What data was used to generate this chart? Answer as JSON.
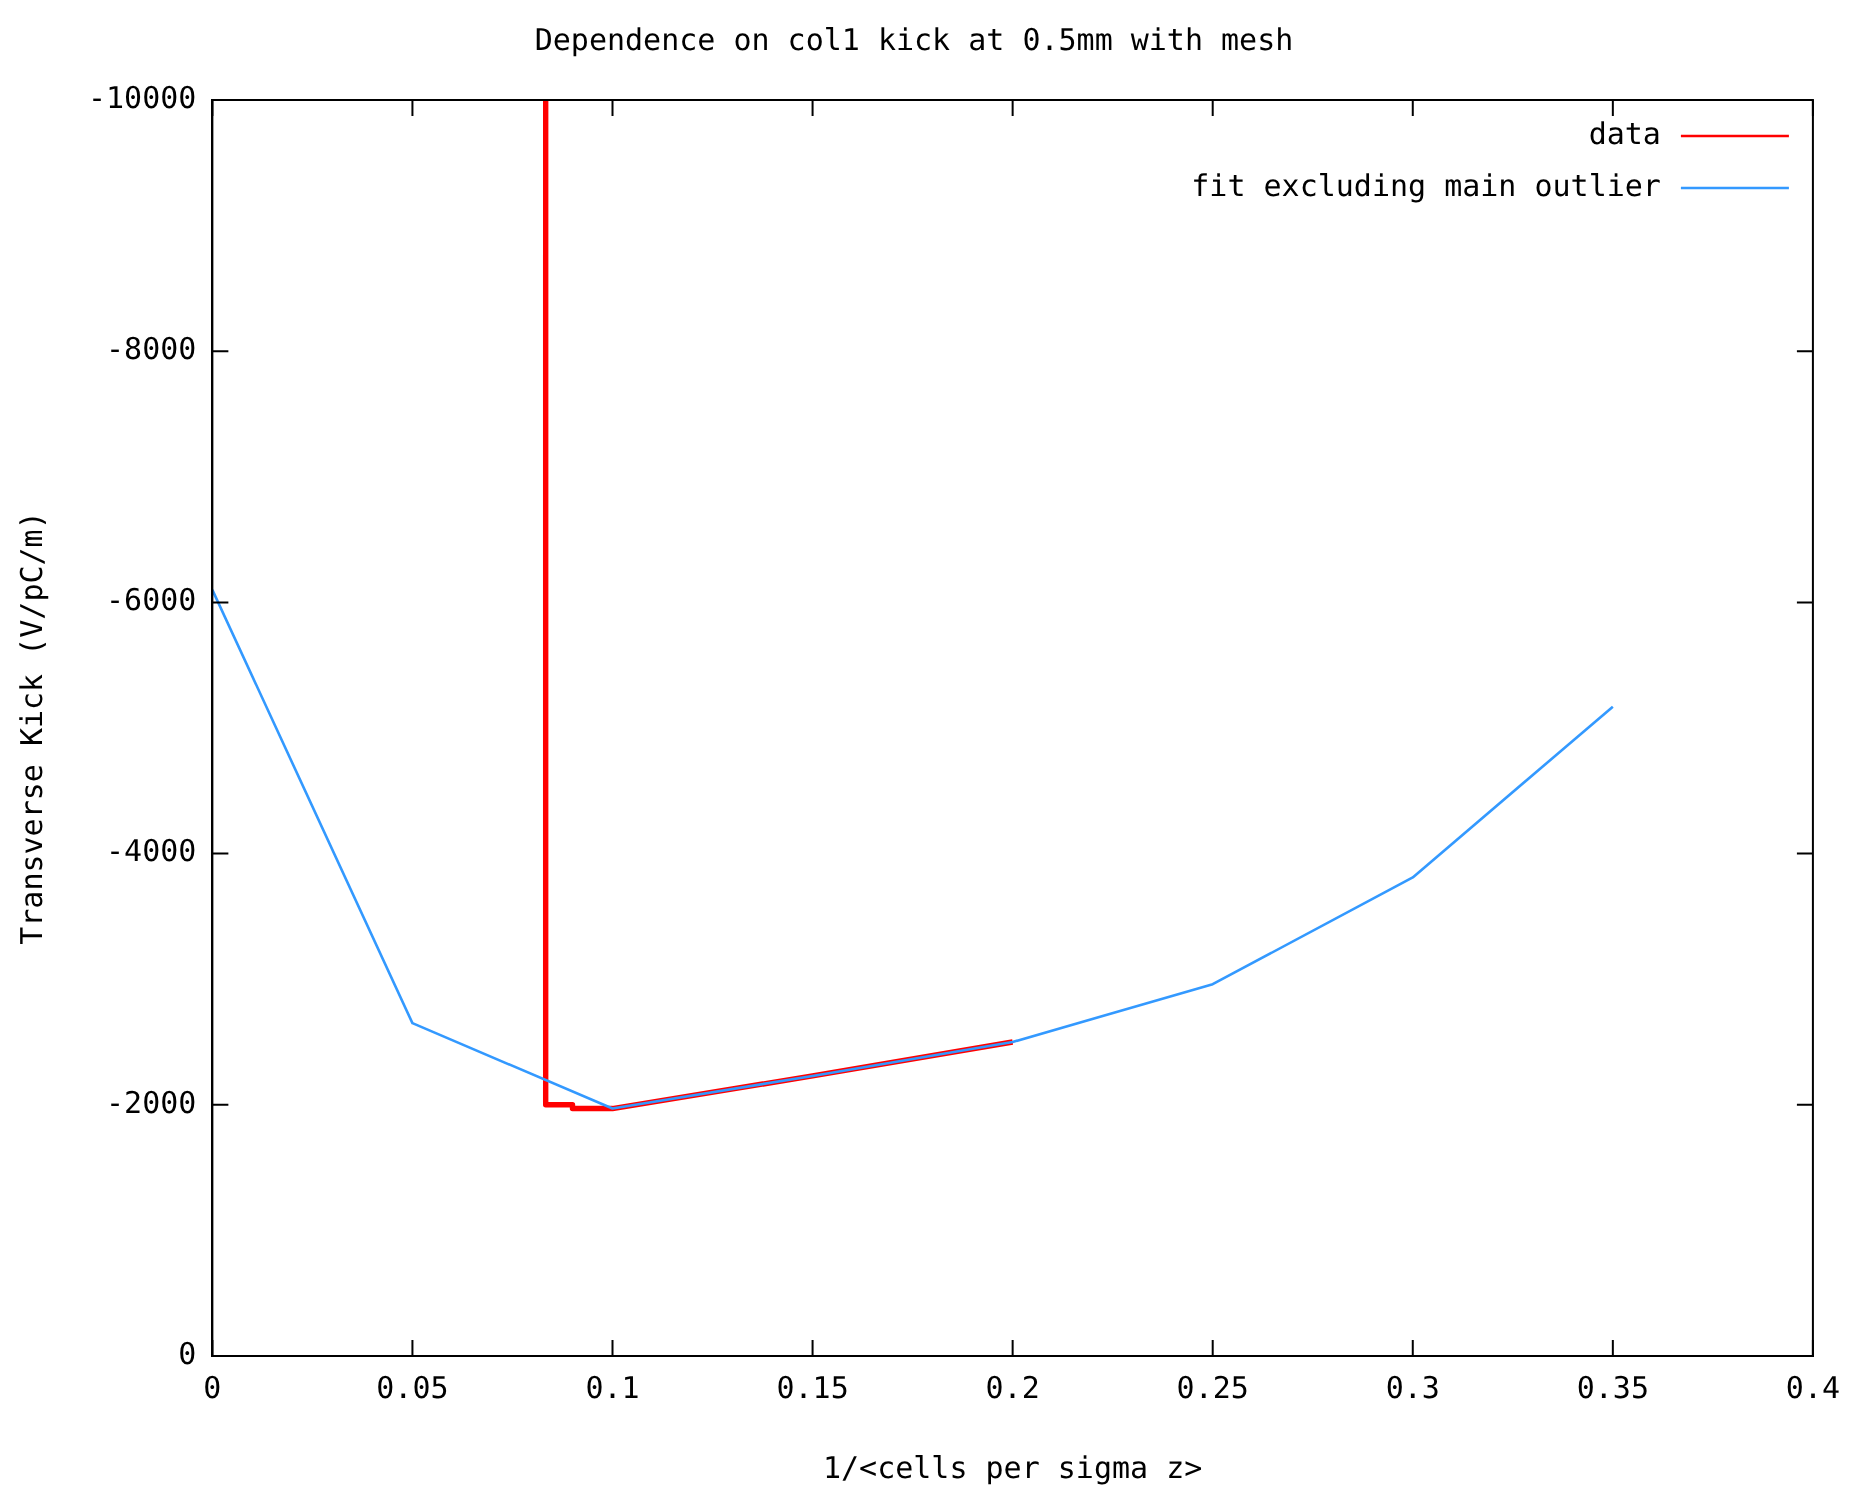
{
  "chart_data": {
    "type": "line",
    "title": "Dependence on col1 kick at 0.5mm with mesh",
    "xlabel": "1/<cells per sigma z>",
    "ylabel": "Transverse Kick (V/pC/m)",
    "xlim": [
      0,
      0.4
    ],
    "xticks": [
      0,
      0.05,
      0.1,
      0.15,
      0.2,
      0.25,
      0.3,
      0.35,
      0.4
    ],
    "ylim": [
      0,
      -10000
    ],
    "yticks": [
      0,
      -2000,
      -4000,
      -6000,
      -8000,
      -10000
    ],
    "grid": false,
    "legend": "top right",
    "marker": "none",
    "line_style": "solid",
    "series": [
      {
        "name": "data",
        "color": "#ff0000",
        "x": [
          0.0833,
          0.0833,
          0.09,
          0.09,
          0.1,
          0.15,
          0.2
        ],
        "values": [
          -10000,
          -2000,
          -2000,
          -1970,
          -1970,
          -2230,
          -2500
        ]
      },
      {
        "name": "fit excluding main outlier",
        "color": "#3399ff",
        "x": [
          0,
          0.05,
          0.1,
          0.15,
          0.2,
          0.25,
          0.3,
          0.35
        ],
        "values": [
          -6100,
          -2650,
          -1970,
          -2230,
          -2500,
          -2960,
          -3810,
          -5170
        ]
      }
    ]
  }
}
